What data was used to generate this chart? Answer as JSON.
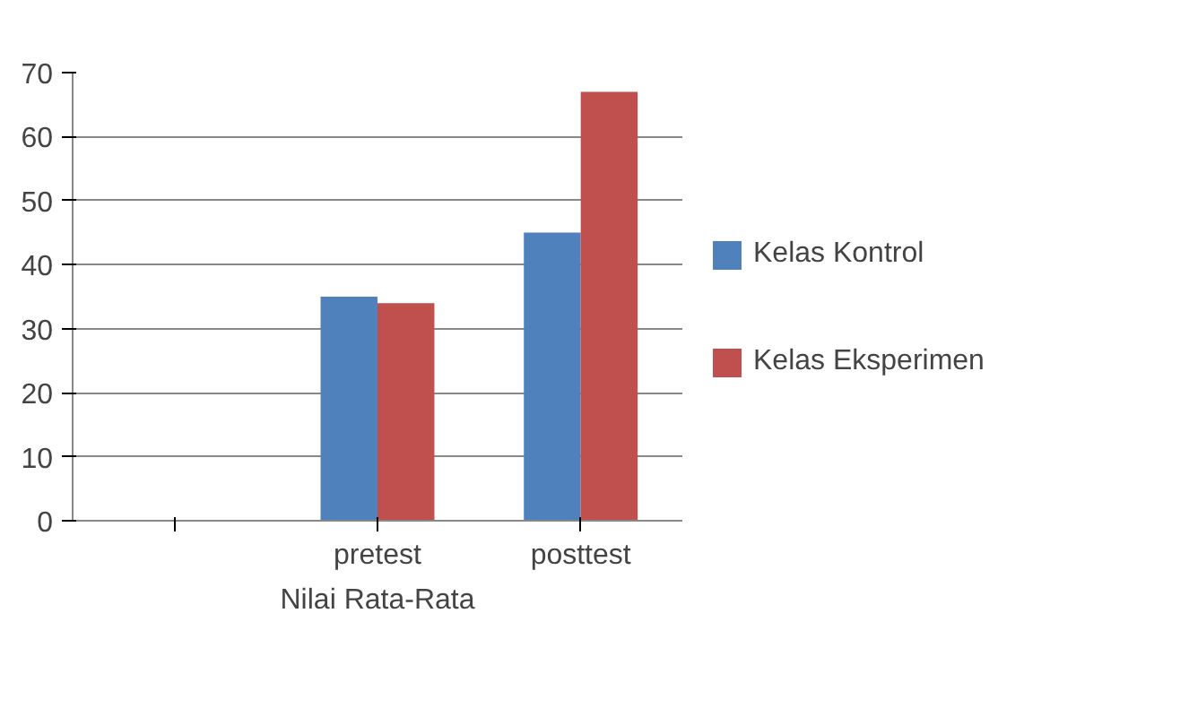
{
  "chart_data": {
    "type": "bar",
    "xlabel": "Nilai Rata-Rata",
    "categories": [
      null,
      "pretest",
      "posttest"
    ],
    "series": [
      {
        "name": "Kelas Kontrol",
        "color": "#4f81bd",
        "values": [
          null,
          35,
          45
        ]
      },
      {
        "name": "Kelas Eksperimen",
        "color": "#c0504d",
        "values": [
          null,
          34,
          67
        ]
      }
    ],
    "ylim": [
      0,
      70
    ],
    "yticks": [
      0,
      10,
      20,
      30,
      40,
      50,
      60,
      70
    ],
    "grid": "y",
    "legend": "right"
  }
}
